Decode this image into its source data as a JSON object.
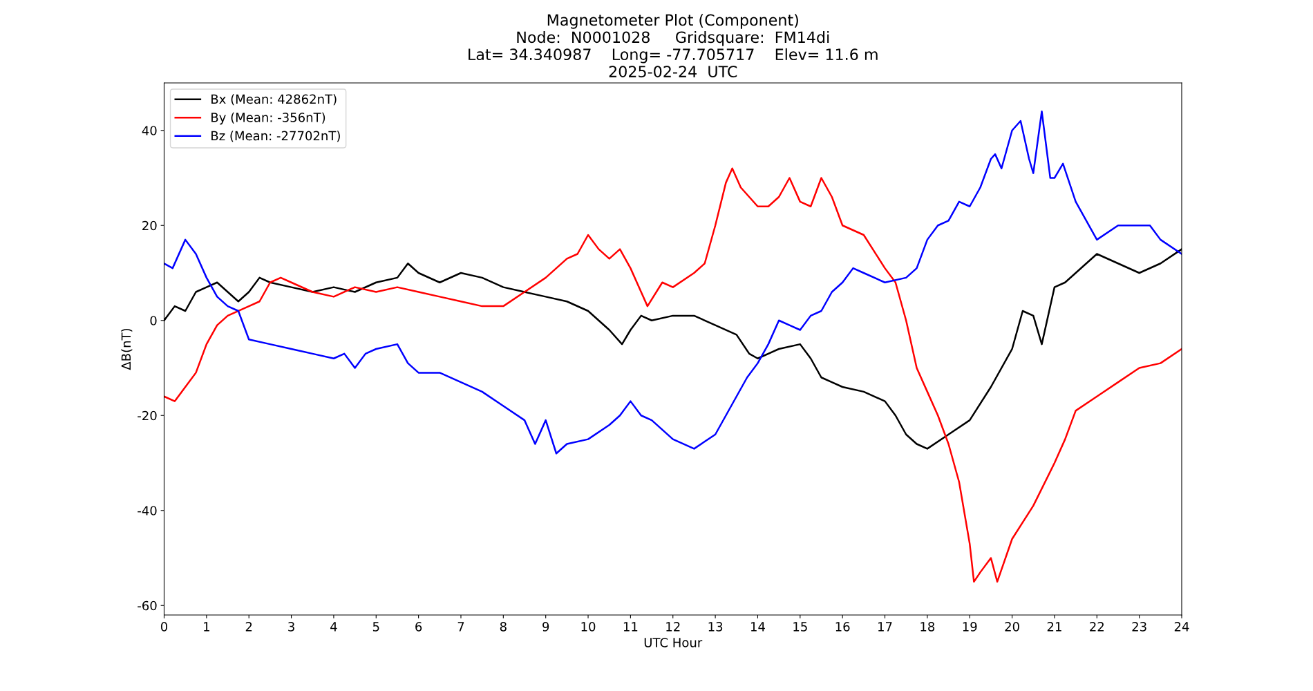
{
  "chart_data": {
    "type": "line",
    "title": "Magnetometer Plot (Component)\nNode:  N0001028     Gridsquare:  FM14di\nLat= 34.340987    Long= -77.705717    Elev= 11.6 m\n2025-02-24  UTC",
    "xlabel": "UTC Hour",
    "ylabel": "ΔB(nT)",
    "series": [
      {
        "name": "Bx (Mean: 42862nT)",
        "color": "#000000",
        "x": [
          0,
          0.25,
          0.5,
          0.75,
          1,
          1.25,
          1.5,
          1.75,
          2,
          2.25,
          2.5,
          3,
          3.5,
          4,
          4.5,
          5,
          5.5,
          5.75,
          6,
          6.5,
          7,
          7.5,
          8,
          8.5,
          9,
          9.5,
          10,
          10.5,
          10.8,
          11,
          11.25,
          11.5,
          12,
          12.5,
          13,
          13.5,
          13.8,
          14,
          14.5,
          15,
          15.25,
          15.5,
          15.75,
          16,
          16.5,
          17,
          17.25,
          17.5,
          17.75,
          18,
          18.5,
          19,
          19.5,
          20,
          20.25,
          20.5,
          20.7,
          21,
          21.25,
          21.5,
          22,
          22.5,
          23,
          23.5,
          24
        ],
        "values": [
          0,
          3,
          2,
          6,
          7,
          8,
          6,
          4,
          6,
          9,
          8,
          7,
          6,
          7,
          6,
          8,
          9,
          12,
          10,
          8,
          10,
          9,
          7,
          6,
          5,
          4,
          2,
          -2,
          -5,
          -2,
          1,
          0,
          1,
          1,
          -1,
          -3,
          -7,
          -8,
          -6,
          -5,
          -8,
          -12,
          -13,
          -14,
          -15,
          -17,
          -20,
          -24,
          -26,
          -27,
          -24,
          -21,
          -14,
          -6,
          2,
          1,
          -5,
          7,
          8,
          10,
          14,
          12,
          10,
          12,
          15
        ]
      },
      {
        "name": "By (Mean: -356nT)",
        "color": "#ff0000",
        "x": [
          0,
          0.25,
          0.5,
          0.75,
          1,
          1.25,
          1.5,
          2,
          2.25,
          2.5,
          2.75,
          3,
          3.5,
          4,
          4.5,
          5,
          5.5,
          6,
          6.5,
          7,
          7.5,
          8,
          8.5,
          9,
          9.5,
          9.75,
          10,
          10.25,
          10.5,
          10.75,
          11,
          11.25,
          11.4,
          11.75,
          12,
          12.5,
          12.75,
          13,
          13.25,
          13.4,
          13.6,
          14,
          14.25,
          14.5,
          14.75,
          15,
          15.25,
          15.5,
          15.75,
          16,
          16.5,
          17,
          17.25,
          17.5,
          17.75,
          18,
          18.25,
          18.5,
          18.75,
          19,
          19.1,
          19.25,
          19.5,
          19.65,
          20,
          20.5,
          21,
          21.25,
          21.5,
          22,
          22.5,
          23,
          23.5,
          24
        ],
        "values": [
          -16,
          -17,
          -14,
          -11,
          -5,
          -1,
          1,
          3,
          4,
          8,
          9,
          8,
          6,
          5,
          7,
          6,
          7,
          6,
          5,
          4,
          3,
          3,
          6,
          9,
          13,
          14,
          18,
          15,
          13,
          15,
          11,
          6,
          3,
          8,
          7,
          10,
          12,
          20,
          29,
          32,
          28,
          24,
          24,
          26,
          30,
          25,
          24,
          30,
          26,
          20,
          18,
          11,
          8,
          0,
          -10,
          -15,
          -20,
          -26,
          -34,
          -47,
          -55,
          -53,
          -50,
          -55,
          -46,
          -39,
          -30,
          -25,
          -19,
          -16,
          -13,
          -10,
          -9,
          -6
        ]
      },
      {
        "name": "Bz (Mean: -27702nT)",
        "color": "#0000ff",
        "x": [
          0,
          0.2,
          0.5,
          0.75,
          1,
          1.25,
          1.5,
          1.75,
          2,
          2.5,
          3,
          3.5,
          4,
          4.25,
          4.5,
          4.75,
          5,
          5.5,
          5.75,
          6,
          6.5,
          7,
          7.5,
          8,
          8.5,
          8.75,
          9,
          9.25,
          9.5,
          10,
          10.5,
          10.75,
          11,
          11.25,
          11.5,
          12,
          12.5,
          13,
          13.25,
          13.5,
          13.75,
          14,
          14.25,
          14.5,
          14.75,
          15,
          15.25,
          15.5,
          15.75,
          16,
          16.25,
          16.5,
          17,
          17.5,
          17.75,
          18,
          18.25,
          18.5,
          18.75,
          19,
          19.25,
          19.5,
          19.6,
          19.75,
          20,
          20.2,
          20.4,
          20.5,
          20.7,
          20.9,
          21,
          21.2,
          21.5,
          22,
          22.5,
          23,
          23.25,
          23.5,
          24
        ],
        "values": [
          12,
          11,
          17,
          14,
          9,
          5,
          3,
          2,
          -4,
          -5,
          -6,
          -7,
          -8,
          -7,
          -10,
          -7,
          -6,
          -5,
          -9,
          -11,
          -11,
          -13,
          -15,
          -18,
          -21,
          -26,
          -21,
          -28,
          -26,
          -25,
          -22,
          -20,
          -17,
          -20,
          -21,
          -25,
          -27,
          -24,
          -20,
          -16,
          -12,
          -9,
          -5,
          0,
          -1,
          -2,
          1,
          2,
          6,
          8,
          11,
          10,
          8,
          9,
          11,
          17,
          20,
          21,
          25,
          24,
          28,
          34,
          35,
          32,
          40,
          42,
          34,
          31,
          44,
          30,
          30,
          33,
          25,
          17,
          20,
          20,
          20,
          17,
          14
        ]
      }
    ],
    "xlim": [
      0,
      24
    ],
    "xticks": [
      0,
      1,
      2,
      3,
      4,
      5,
      6,
      7,
      8,
      9,
      10,
      11,
      12,
      13,
      14,
      15,
      16,
      17,
      18,
      19,
      20,
      21,
      22,
      23,
      24
    ],
    "ylim": [
      -62,
      50
    ],
    "yticks": [
      -60,
      -40,
      -20,
      0,
      20,
      40
    ],
    "legend": "top left",
    "grid": false,
    "line_style": "solid",
    "marker": "none"
  }
}
